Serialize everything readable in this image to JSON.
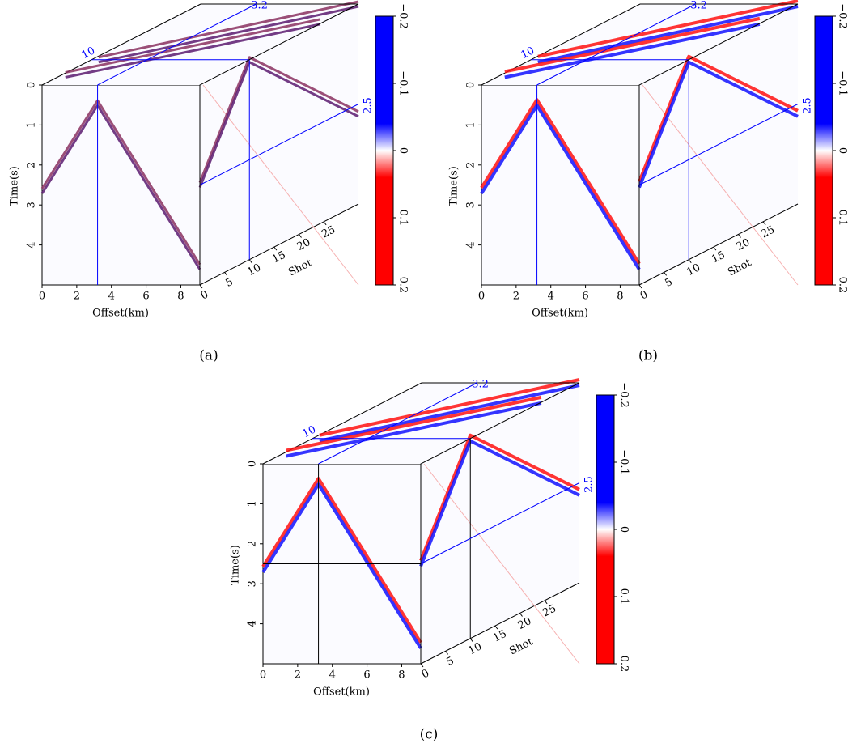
{
  "chart_data": [
    {
      "type": "cube",
      "caption": "(a)",
      "ylabel": "Time(s)",
      "xlabel": "Offset(km)",
      "zlabel": "Shot",
      "ylim": [
        0,
        5
      ],
      "yticks": [
        0,
        1,
        2,
        3,
        4
      ],
      "xlim": [
        0,
        9.1
      ],
      "xticks": [
        0,
        2,
        4,
        6,
        8
      ],
      "zlim": [
        0,
        32
      ],
      "zticks": [
        0,
        5,
        10,
        15,
        20,
        25
      ],
      "x_slice": 3.2,
      "z_slice": 10,
      "y_slice": 2.5,
      "colormap": "purple",
      "slice_color": "#0000ff",
      "clim": [
        -0.2,
        0.2
      ],
      "cticks": [
        {
          "value": -0.2,
          "label": "−0.2"
        },
        {
          "value": -0.1,
          "label": "−0.1"
        },
        0,
        0.1,
        0.2
      ]
    },
    {
      "type": "cube",
      "caption": "(b)",
      "ylabel": "Time(s)",
      "xlabel": "Offset(km)",
      "zlabel": "Shot",
      "ylim": [
        0,
        5
      ],
      "yticks": [
        0,
        1,
        2,
        3,
        4
      ],
      "xlim": [
        0,
        9.1
      ],
      "xticks": [
        0,
        2,
        4,
        6,
        8
      ],
      "zlim": [
        0,
        32
      ],
      "zticks": [
        0,
        5,
        10,
        15,
        20,
        25
      ],
      "x_slice": 3.2,
      "z_slice": 10,
      "y_slice": 2.5,
      "colormap": "redblue",
      "slice_color": "#0000ff",
      "clim": [
        -0.2,
        0.2
      ],
      "cticks": [
        {
          "value": -0.2,
          "label": "−0.2"
        },
        {
          "value": -0.1,
          "label": "−0.1"
        },
        0,
        0.1,
        0.2
      ]
    },
    {
      "type": "cube",
      "caption": "(c)",
      "ylabel": "Time(s)",
      "xlabel": "Offset(km)",
      "zlabel": "Shot",
      "ylim": [
        0,
        5
      ],
      "yticks": [
        0,
        1,
        2,
        3,
        4
      ],
      "xlim": [
        0,
        9.1
      ],
      "xticks": [
        0,
        2,
        4,
        6,
        8
      ],
      "zlim": [
        0,
        32
      ],
      "zticks": [
        0,
        5,
        10,
        15,
        20,
        25
      ],
      "x_slice": 3.2,
      "z_slice": 10,
      "y_slice": 2.5,
      "colormap": "redblue",
      "slice_color": "#000000",
      "clim": [
        -0.2,
        0.2
      ],
      "cticks": [
        {
          "value": -0.2,
          "label": "−0.2"
        },
        {
          "value": -0.1,
          "label": "−0.1"
        },
        0,
        0.1,
        0.2
      ]
    }
  ]
}
